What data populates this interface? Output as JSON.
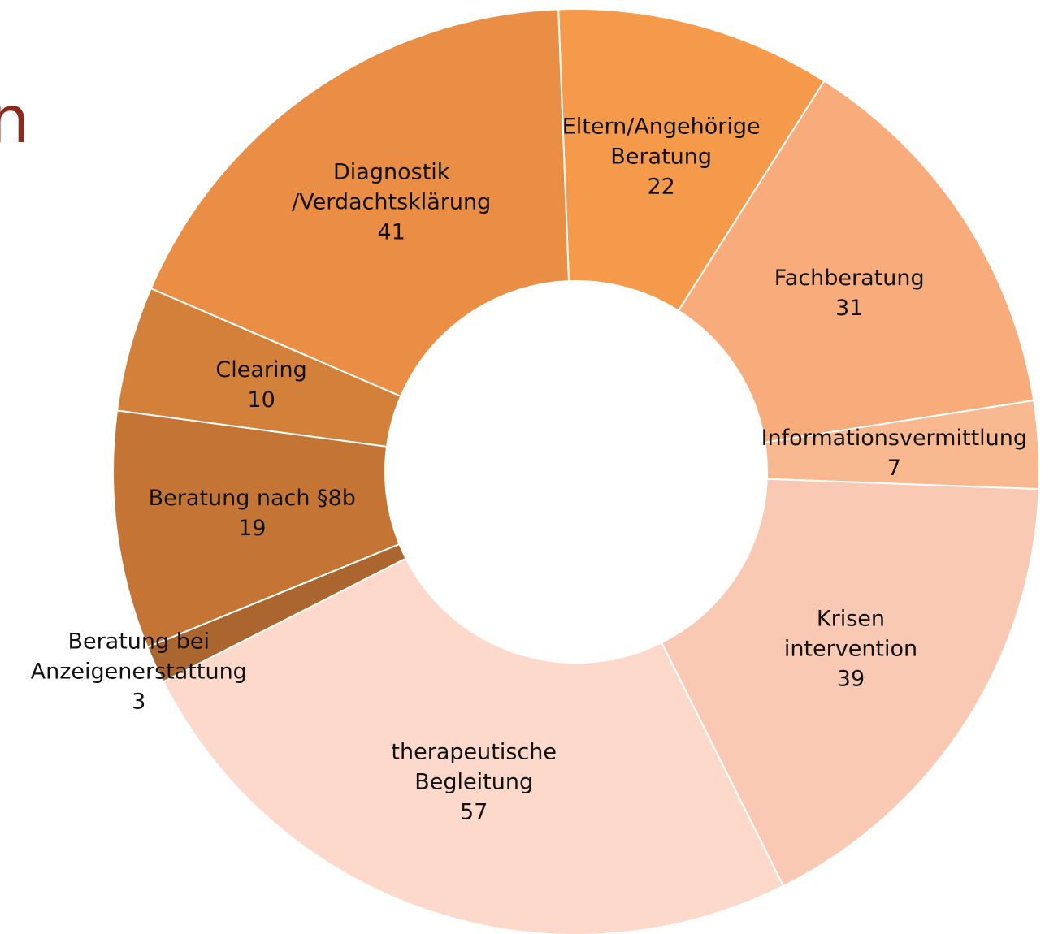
{
  "chart_data": {
    "type": "donut",
    "title": "n",
    "categories": [
      "Eltern/Angehörige\nBeratung",
      "Fachberatung",
      "Informationsvermittlung",
      "Krisen\nintervention",
      "therapeutische\nBegleitung",
      "Beratung bei\nAnzeigenerstattung",
      "Beratung nach §8b",
      "Clearing",
      "Diagnostik\n/Verdachtsklärung"
    ],
    "values": [
      22,
      31,
      7,
      39,
      57,
      3,
      19,
      10,
      41
    ],
    "colors": [
      "#f5994a",
      "#f8ab7b",
      "#f9b990",
      "#f9c9b3",
      "#fcd9cb",
      "#aa662e",
      "#c47535",
      "#d3803b",
      "#e98e44"
    ]
  }
}
